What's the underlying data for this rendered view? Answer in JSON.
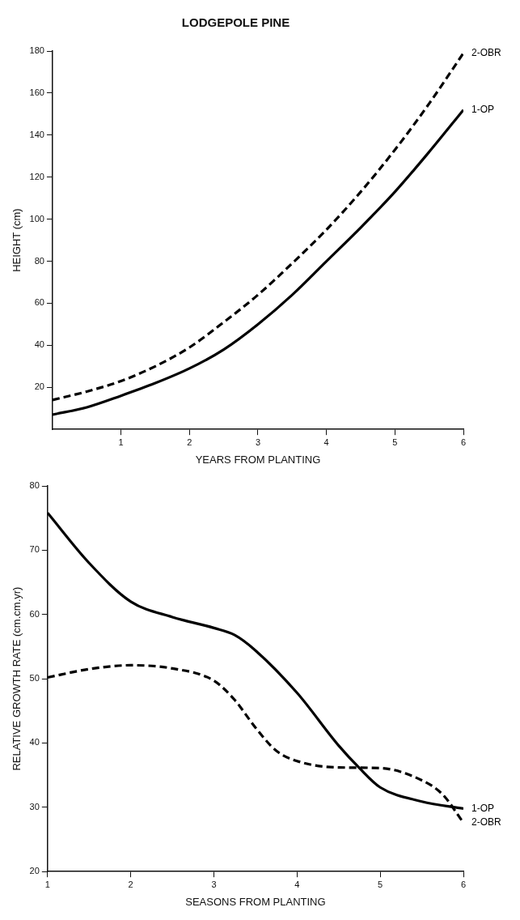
{
  "chart_data": [
    {
      "type": "line",
      "title": "LODGEPOLE PINE",
      "xlabel": "YEARS FROM PLANTING",
      "ylabel": "HEIGHT (cm)",
      "x": [
        0,
        0.5,
        1,
        1.5,
        2,
        2.5,
        3,
        3.5,
        4,
        4.5,
        5,
        5.5,
        6
      ],
      "xlim": [
        0,
        6
      ],
      "xticks": [
        1,
        2,
        3,
        4,
        5,
        6
      ],
      "ylim": [
        0,
        180
      ],
      "yticks": [
        20,
        40,
        60,
        80,
        100,
        120,
        140,
        160,
        180
      ],
      "grid": false,
      "legend": false,
      "marker": "none",
      "series": [
        {
          "name": "1-OP",
          "color": "#000000",
          "line_style": "solid",
          "values": [
            7,
            10.5,
            16,
            22,
            29,
            38,
            50,
            64,
            80,
            96,
            113,
            132,
            152
          ]
        },
        {
          "name": "2-OBR",
          "color": "#000000",
          "line_style": "dashed",
          "values": [
            14,
            18,
            23,
            30,
            39,
            51,
            64,
            79,
            95,
            113,
            133,
            155,
            179
          ]
        }
      ]
    },
    {
      "type": "line",
      "xlabel": "SEASONS FROM PLANTING",
      "ylabel": "RELATIVE GROWTH RATE (cm.cm.yr)",
      "xlim": [
        1,
        6
      ],
      "xticks": [
        1,
        2,
        3,
        4,
        5,
        6
      ],
      "ylim": [
        20,
        80
      ],
      "yticks": [
        20,
        30,
        40,
        50,
        60,
        70,
        80
      ],
      "grid": false,
      "legend": false,
      "marker": "none",
      "series": [
        {
          "name": "1-OP",
          "color": "#000000",
          "line_style": "solid",
          "x": [
            1,
            1.5,
            2,
            2.5,
            3,
            3.25,
            3.5,
            4,
            4.5,
            4.75,
            5,
            5.5,
            6
          ],
          "values": [
            75.8,
            68,
            62,
            59.6,
            57.9,
            56.8,
            54.4,
            47.8,
            39.6,
            36.1,
            33.1,
            30.9,
            29.8
          ]
        },
        {
          "name": "2-OBR",
          "color": "#000000",
          "line_style": "dashed",
          "x": [
            1,
            1.5,
            2,
            2.5,
            3,
            3.25,
            3.5,
            3.75,
            4,
            4.5,
            5,
            5.5,
            5.75,
            6
          ],
          "values": [
            50.2,
            51.5,
            52.1,
            51.6,
            49.7,
            46.7,
            42.4,
            38.8,
            37.2,
            36.2,
            36.1,
            34.2,
            32,
            27.6
          ]
        }
      ]
    }
  ]
}
